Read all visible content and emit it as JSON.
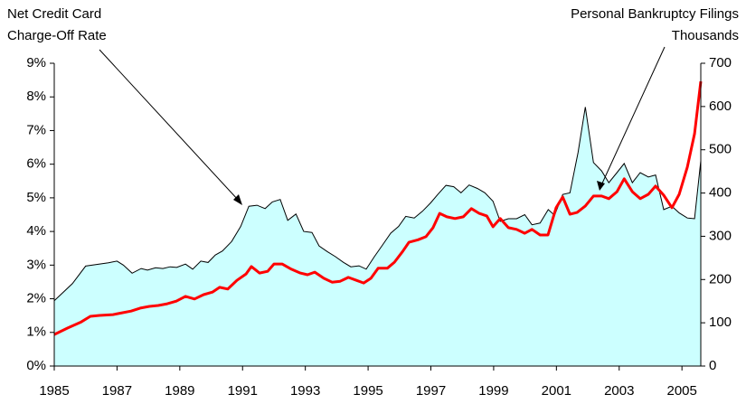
{
  "chart_data": {
    "type": "area-line",
    "annotations": [
      "Net Credit Card",
      "Charge-Off Rate",
      "Personal Bankruptcy Filings"
    ],
    "y2label": "Thousands",
    "xlim": [
      1985,
      2005.6
    ],
    "xticks": [
      1985,
      1987,
      1989,
      1991,
      1993,
      1995,
      1997,
      1999,
      2001,
      2003,
      2005
    ],
    "ylim": [
      0,
      9
    ],
    "yticks": [
      {
        "value": 0,
        "label": "0%"
      },
      {
        "value": 1,
        "label": "1%"
      },
      {
        "value": 2,
        "label": "2%"
      },
      {
        "value": 3,
        "label": "3%"
      },
      {
        "value": 4,
        "label": "4%"
      },
      {
        "value": 5,
        "label": "5%"
      },
      {
        "value": 6,
        "label": "6%"
      },
      {
        "value": 7,
        "label": "7%"
      },
      {
        "value": 8,
        "label": "8%"
      },
      {
        "value": 9,
        "label": "9%"
      }
    ],
    "y2lim": [
      0,
      700
    ],
    "y2ticks": [
      0,
      100,
      200,
      300,
      400,
      500,
      600,
      700
    ],
    "series": [
      {
        "type": "area",
        "color": "#ccffff",
        "x": [
          1985.0,
          1985.58,
          1986.0,
          1986.73,
          1987.0,
          1987.2,
          1987.48,
          1987.77,
          1987.97,
          1988.23,
          1988.46,
          1988.69,
          1988.9,
          1989.18,
          1989.41,
          1989.67,
          1989.9,
          1990.13,
          1990.36,
          1990.65,
          1990.94,
          1991.2,
          1991.46,
          1991.72,
          1991.95,
          1992.2,
          1992.44,
          1992.7,
          1992.95,
          1993.21,
          1993.44,
          1993.7,
          1993.96,
          1994.22,
          1994.45,
          1994.71,
          1994.94,
          1995.2,
          1995.46,
          1995.72,
          1995.97,
          1996.2,
          1996.47,
          1996.73,
          1996.99,
          1997.22,
          1997.48,
          1997.73,
          1997.96,
          1998.22,
          1998.48,
          1998.72,
          1998.98,
          1999.21,
          1999.47,
          1999.73,
          1999.99,
          2000.22,
          2000.48,
          2000.74,
          2000.94,
          2001.2,
          2001.43,
          2001.69,
          2001.92,
          2002.18,
          2002.44,
          2002.67,
          2002.93,
          2003.16,
          2003.42,
          2003.67,
          2003.93,
          2004.16,
          2004.42,
          2004.68,
          2004.91,
          2005.17,
          2005.4,
          2005.6
        ],
        "values": [
          1.94,
          2.45,
          2.97,
          3.07,
          3.12,
          3.0,
          2.76,
          2.9,
          2.85,
          2.92,
          2.9,
          2.95,
          2.93,
          3.03,
          2.88,
          3.12,
          3.08,
          3.3,
          3.42,
          3.7,
          4.15,
          4.75,
          4.78,
          4.68,
          4.88,
          4.95,
          4.33,
          4.52,
          4.0,
          3.97,
          3.57,
          3.4,
          3.25,
          3.08,
          2.95,
          2.98,
          2.88,
          3.25,
          3.6,
          3.95,
          4.15,
          4.45,
          4.4,
          4.6,
          4.85,
          5.1,
          5.37,
          5.33,
          5.15,
          5.38,
          5.28,
          5.15,
          4.9,
          4.3,
          4.38,
          4.38,
          4.5,
          4.2,
          4.25,
          4.65,
          4.48,
          5.1,
          5.15,
          6.35,
          7.7,
          6.05,
          5.8,
          5.45,
          5.75,
          6.02,
          5.45,
          5.75,
          5.62,
          5.68,
          4.65,
          4.75,
          4.55,
          4.4,
          4.38,
          6.1
        ]
      },
      {
        "type": "line",
        "axis": "y2",
        "color": "#ff0000",
        "x": [
          1985.0,
          1985.43,
          1985.86,
          1986.15,
          1986.44,
          1986.87,
          1987.16,
          1987.45,
          1987.74,
          1988.03,
          1988.31,
          1988.6,
          1988.89,
          1989.18,
          1989.47,
          1989.76,
          1990.04,
          1990.27,
          1990.53,
          1990.82,
          1991.11,
          1991.28,
          1991.54,
          1991.8,
          1992.0,
          1992.26,
          1992.55,
          1992.84,
          1993.07,
          1993.3,
          1993.59,
          1993.85,
          1994.11,
          1994.37,
          1994.63,
          1994.86,
          1995.09,
          1995.32,
          1995.61,
          1995.84,
          1996.1,
          1996.3,
          1996.59,
          1996.84,
          1997.07,
          1997.28,
          1997.51,
          1997.77,
          1998.03,
          1998.29,
          1998.54,
          1998.78,
          1998.98,
          1999.21,
          1999.47,
          1999.73,
          1999.99,
          2000.22,
          2000.48,
          2000.73,
          2000.99,
          2001.2,
          2001.43,
          2001.66,
          2001.92,
          2002.18,
          2002.44,
          2002.67,
          2002.93,
          2003.16,
          2003.42,
          2003.67,
          2003.93,
          2004.16,
          2004.42,
          2004.68,
          2004.91,
          2005.17,
          2005.4,
          2005.6
        ],
        "values": [
          73,
          88,
          102,
          115,
          117,
          119,
          123,
          127,
          134,
          138,
          140,
          144,
          150,
          161,
          155,
          165,
          171,
          182,
          178,
          198,
          213,
          230,
          215,
          219,
          236,
          236,
          224,
          215,
          211,
          217,
          203,
          194,
          196,
          205,
          198,
          192,
          203,
          226,
          226,
          240,
          265,
          286,
          292,
          299,
          320,
          353,
          345,
          341,
          345,
          364,
          353,
          347,
          322,
          341,
          320,
          316,
          307,
          316,
          303,
          303,
          366,
          391,
          351,
          355,
          370,
          393,
          393,
          387,
          403,
          433,
          403,
          387,
          397,
          416,
          395,
          366,
          397,
          460,
          537,
          658
        ]
      }
    ]
  }
}
